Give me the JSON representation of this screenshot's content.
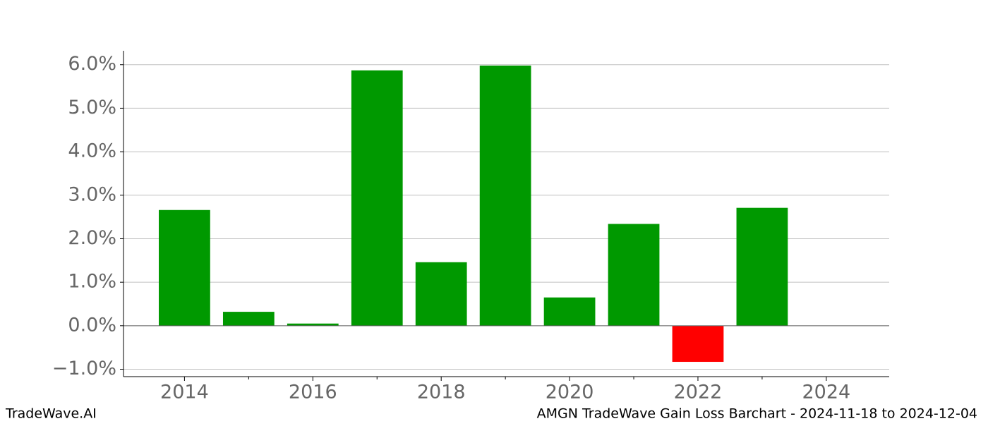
{
  "chart_data": {
    "type": "bar",
    "title": "AMGN TradeWave Gain Loss Barchart - 2024-11-18 to 2024-12-04",
    "watermark": "TradeWave.AI",
    "x": [
      2014,
      2015,
      2016,
      2017,
      2018,
      2019,
      2020,
      2021,
      2022,
      2023
    ],
    "values": [
      2.66,
      0.32,
      0.05,
      5.87,
      1.46,
      5.98,
      0.65,
      2.34,
      -0.83,
      2.71
    ],
    "color": "#009900",
    "negative_color": "#ff0000",
    "xlim": [
      2013.05,
      2024.98
    ],
    "xticks": [
      2014,
      2016,
      2018,
      2020,
      2022,
      2024
    ],
    "xminor_ticks": [
      2015,
      2017,
      2019,
      2021,
      2023
    ],
    "ylim": [
      -1.17,
      6.32
    ],
    "yticks": [
      {
        "value": -1,
        "label": "−1.0%"
      },
      {
        "value": 0,
        "label": "0.0%"
      },
      {
        "value": 1,
        "label": "1.0%"
      },
      {
        "value": 2,
        "label": "2.0%"
      },
      {
        "value": 3,
        "label": "3.0%"
      },
      {
        "value": 4,
        "label": "4.0%"
      },
      {
        "value": 5,
        "label": "5.0%"
      },
      {
        "value": 6,
        "label": "6.0%"
      }
    ],
    "grid": true
  }
}
